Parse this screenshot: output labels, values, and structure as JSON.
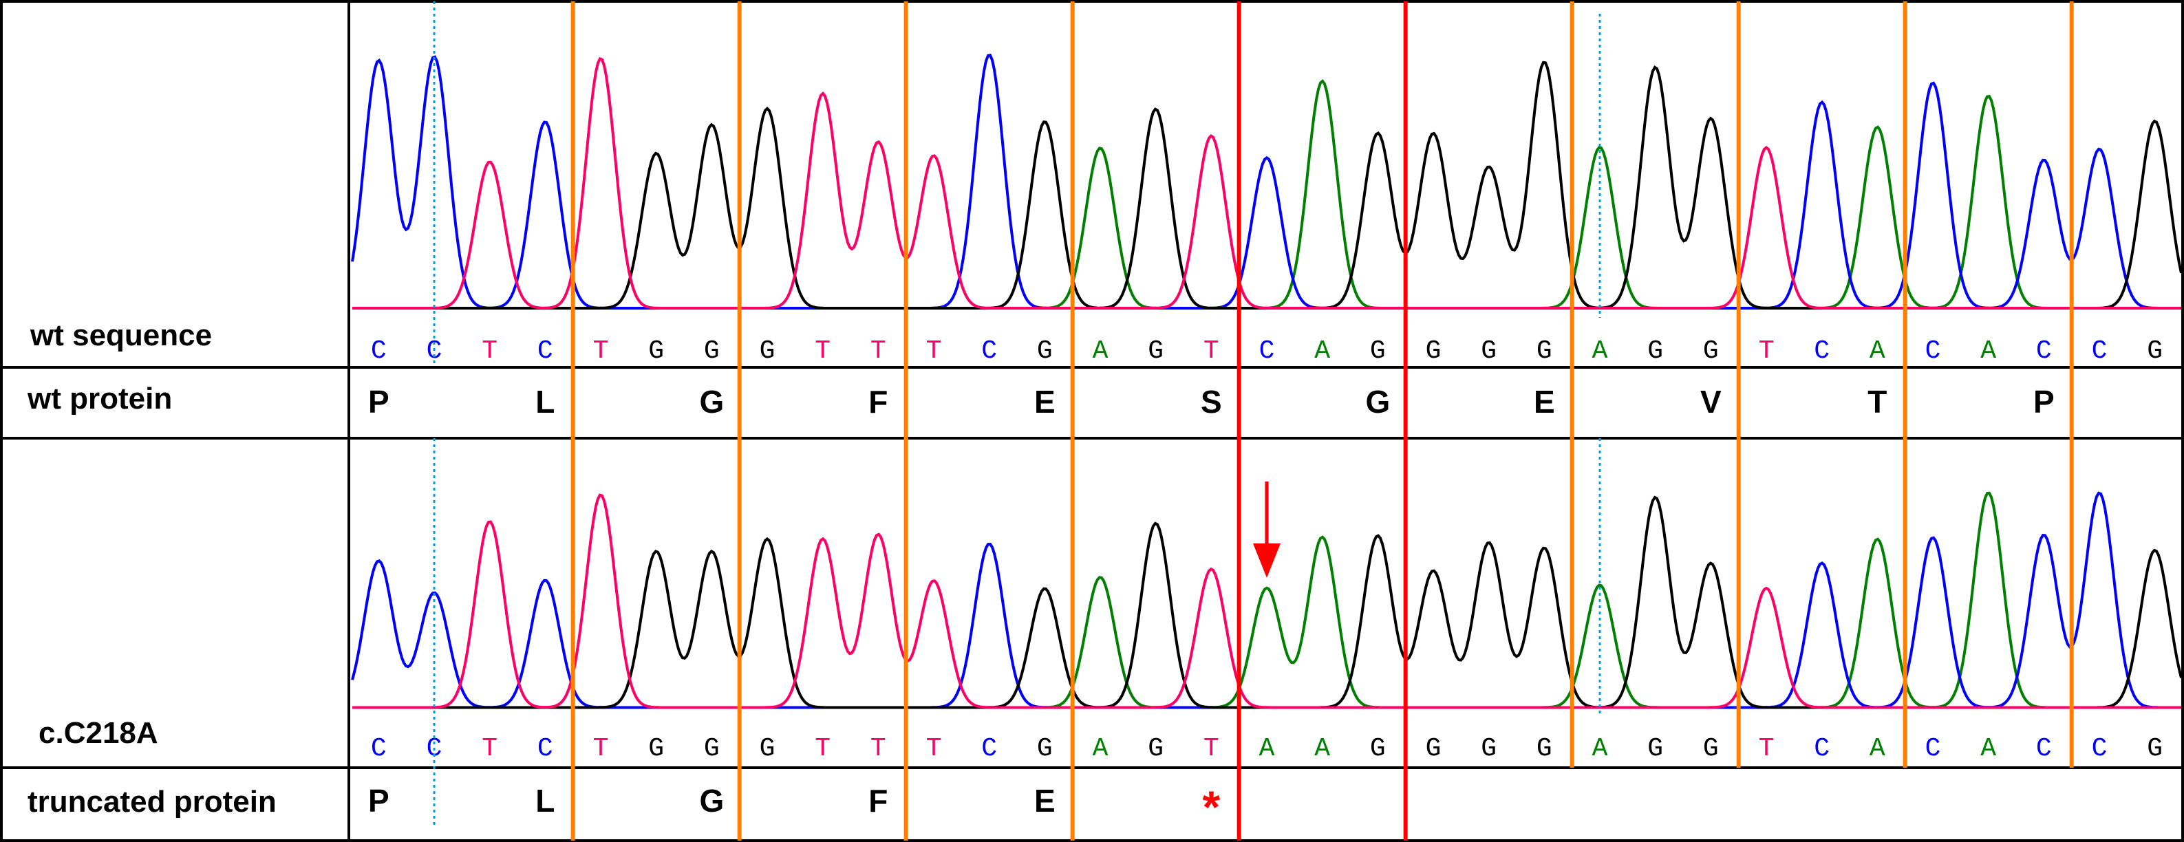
{
  "labels": {
    "wt_sequence": "wt sequence",
    "wt_protein": "wt protein",
    "mutant_sequence": "c.C218A",
    "truncated_protein": "truncated protein"
  },
  "wt_bases": [
    "C",
    "C",
    "T",
    "C",
    "T",
    "G",
    "G",
    "G",
    "T",
    "T",
    "T",
    "C",
    "G",
    "A",
    "G",
    "T",
    "C",
    "A",
    "G",
    "G",
    "G",
    "G",
    "A",
    "G",
    "G",
    "T",
    "C",
    "A",
    "C",
    "A",
    "C",
    "C",
    "G"
  ],
  "mut_bases": [
    "C",
    "C",
    "T",
    "C",
    "T",
    "G",
    "G",
    "G",
    "T",
    "T",
    "T",
    "C",
    "G",
    "A",
    "G",
    "T",
    "A",
    "A",
    "G",
    "G",
    "G",
    "G",
    "A",
    "G",
    "G",
    "T",
    "C",
    "A",
    "C",
    "A",
    "C",
    "C",
    "G"
  ],
  "wt_protein": [
    "P",
    "L",
    "G",
    "F",
    "E",
    "S",
    "G",
    "E",
    "V",
    "T",
    "P"
  ],
  "truncated_protein": [
    "P",
    "L",
    "G",
    "F",
    "E",
    "*"
  ],
  "mutation_codon_index": 5,
  "colors": {
    "A": "#008000",
    "C": "#0000ff",
    "G": "#000000",
    "T": "#ff0066",
    "codon_divider": "#ff8000",
    "mutation_divider": "#ff0000",
    "arrow": "#ff0000",
    "stop": "#ff0000",
    "dotted_marker": "#00a0e0"
  }
}
